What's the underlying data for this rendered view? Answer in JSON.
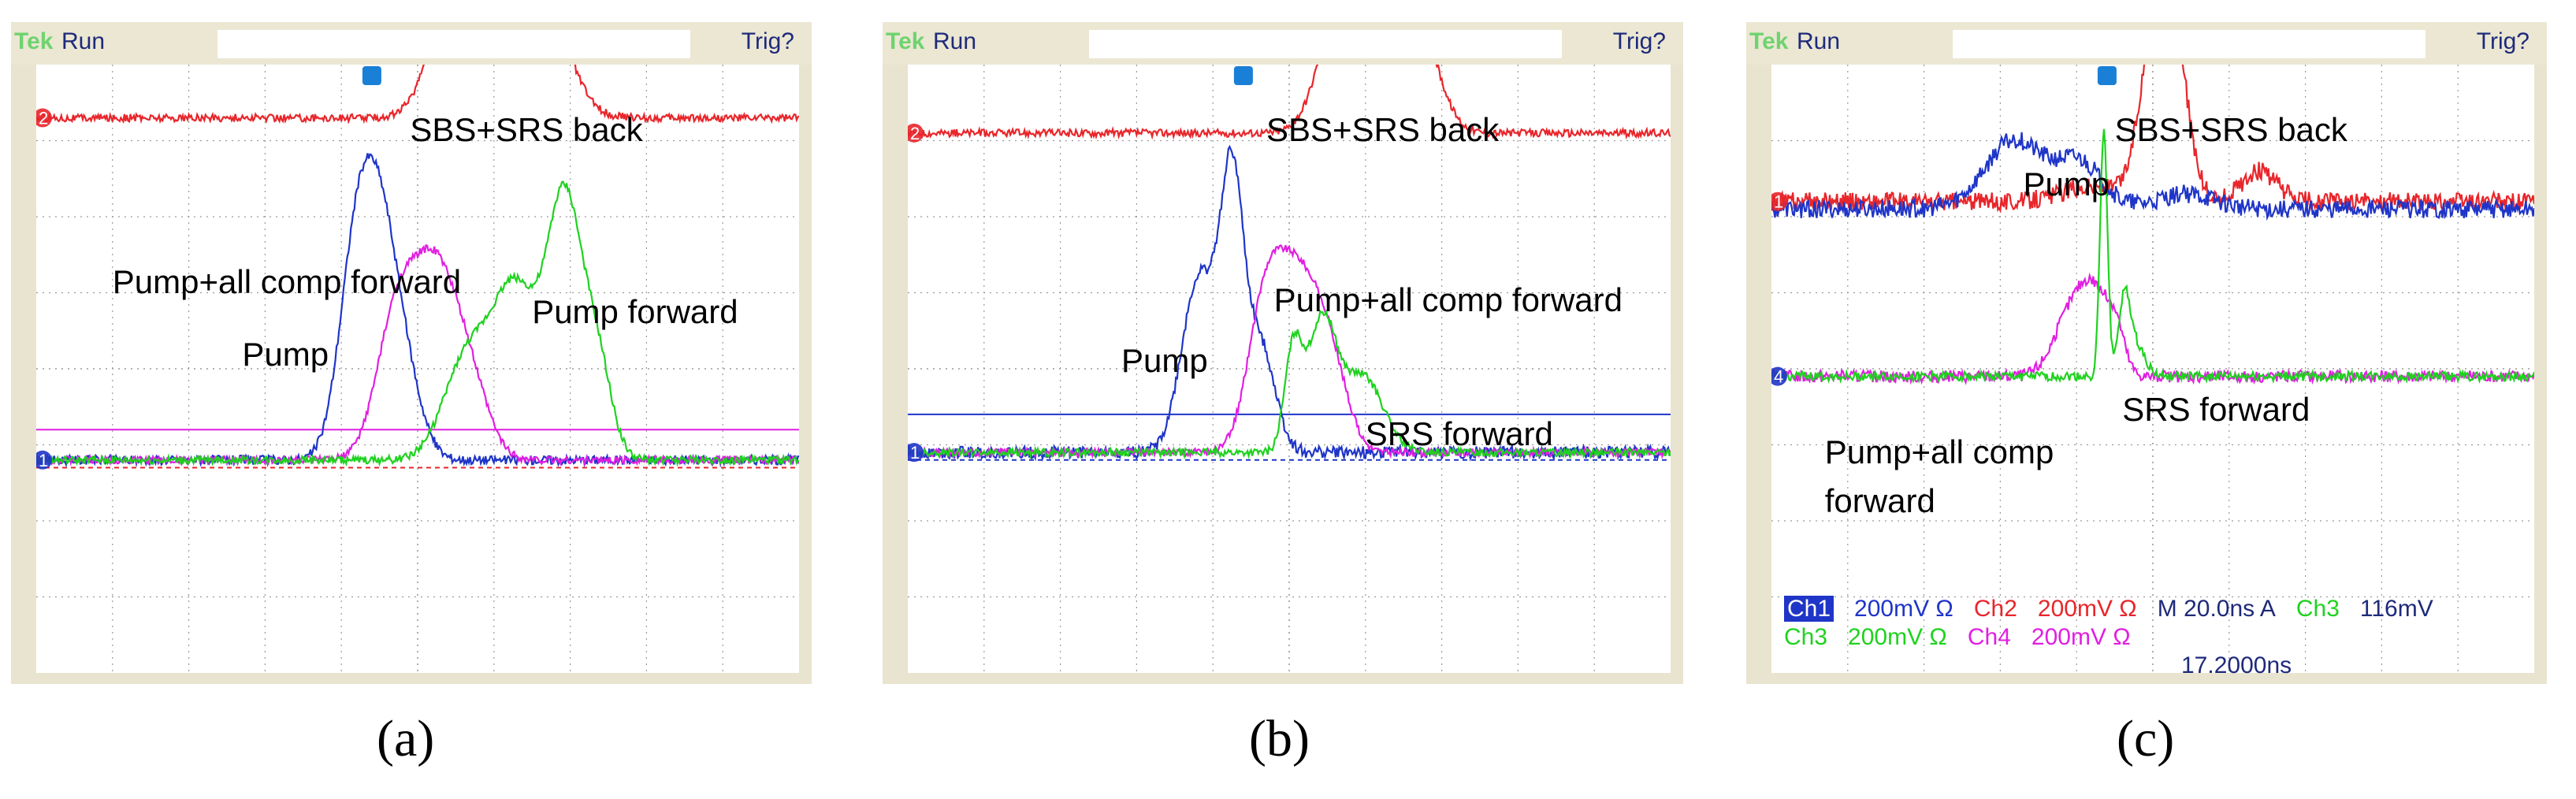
{
  "chart_data": [
    {
      "type": "line",
      "panel": "(a)",
      "caption": "(a)",
      "header": {
        "brand": "Tek",
        "mode": "Run",
        "trigger": "Trig?"
      },
      "x_unit": "ns",
      "x_range": [
        -93.3,
        93.3
      ],
      "y_divisions": 8,
      "x_divisions": 10,
      "series": [
        {
          "name": "Ch2 (red)",
          "color": "#e8262b",
          "baseline": 3.3,
          "noise": 0.05,
          "peaks": [
            {
              "t": 12,
              "h": 2.5,
              "w": 9
            },
            {
              "t": 20,
              "h": 2.4,
              "w": 10
            },
            {
              "t": 28,
              "h": 1.8,
              "w": 10
            }
          ]
        },
        {
          "name": "Ch1 (blue)",
          "color": "#1f35c8",
          "baseline": -1.2,
          "noise": 0.06,
          "peaks": [
            {
              "t": -15,
              "h": 2.6,
              "w": 6
            },
            {
              "t": -9,
              "h": 2.4,
              "w": 6
            },
            {
              "t": -3,
              "h": 0.9,
              "w": 6
            }
          ]
        },
        {
          "name": "Ch4 (magenta)",
          "color": "#e11fe1",
          "baseline": -1.2,
          "noise": 0.05,
          "peaks": [
            {
              "t": -5,
              "h": 1.9,
              "w": 7
            },
            {
              "t": 4,
              "h": 2.1,
              "w": 7
            },
            {
              "t": 12,
              "h": 1.1,
              "w": 7
            }
          ]
        },
        {
          "name": "Ch3 (green)",
          "color": "#1fd21f",
          "baseline": -1.2,
          "noise": 0.05,
          "peaks": [
            {
              "t": 12,
              "h": 1.3,
              "w": 8
            },
            {
              "t": 24,
              "h": 2.2,
              "w": 8
            },
            {
              "t": 36,
              "h": 3.3,
              "w": 6
            },
            {
              "t": 44,
              "h": 1.2,
              "w": 5
            }
          ]
        }
      ],
      "hlines": [
        {
          "color": "#e11fe1",
          "y": -0.8,
          "dash": false
        },
        {
          "color": "#e8262b",
          "y": -1.3,
          "dash": true
        }
      ],
      "annotations": [
        {
          "text": "SBS+SRS back",
          "ax": 0.49,
          "ay": 0.08
        },
        {
          "text": "Pump+all comp forward",
          "ax": 0.1,
          "ay": 0.33
        },
        {
          "text": "Pump forward",
          "ax": 0.65,
          "ay": 0.38
        },
        {
          "text": "Pump",
          "ax": 0.27,
          "ay": 0.45
        }
      ],
      "markers": [
        "2",
        "1"
      ],
      "channel_info": []
    },
    {
      "type": "line",
      "panel": "(b)",
      "caption": "(b)",
      "header": {
        "brand": "Tek",
        "mode": "Run",
        "trigger": "Trig?"
      },
      "x_unit": "ns",
      "x_range": [
        -93.3,
        93.3
      ],
      "y_divisions": 8,
      "x_divisions": 10,
      "series": [
        {
          "name": "Ch2 (red)",
          "color": "#e8262b",
          "baseline": 3.1,
          "noise": 0.05,
          "peaks": [
            {
              "t": 14,
              "h": 1.9,
              "w": 8
            },
            {
              "t": 24,
              "h": 1.7,
              "w": 9
            },
            {
              "t": 32,
              "h": 0.9,
              "w": 7
            }
          ]
        },
        {
          "name": "Ch1 (blue)",
          "color": "#1f35c8",
          "baseline": -1.1,
          "noise": 0.08,
          "peaks": [
            {
              "t": -22,
              "h": 2.3,
              "w": 6
            },
            {
              "t": -14,
              "h": 3.4,
              "w": 4
            },
            {
              "t": -7,
              "h": 1.4,
              "w": 5
            }
          ]
        },
        {
          "name": "Ch4 (magenta)",
          "color": "#e11fe1",
          "baseline": -1.1,
          "noise": 0.05,
          "peaks": [
            {
              "t": -6,
              "h": 1.8,
              "w": 6
            },
            {
              "t": 2,
              "h": 2.1,
              "w": 7
            },
            {
              "t": 10,
              "h": 1.1,
              "w": 6
            }
          ]
        },
        {
          "name": "Ch3 (green)",
          "color": "#1fd21f",
          "baseline": -1.1,
          "noise": 0.05,
          "peaks": [
            {
              "t": 1,
              "h": 1.3,
              "w": 3
            },
            {
              "t": 8,
              "h": 1.7,
              "w": 5
            },
            {
              "t": 18,
              "h": 1.0,
              "w": 7
            }
          ]
        }
      ],
      "hlines": [
        {
          "color": "#1f35c8",
          "y": -0.6,
          "dash": false
        },
        {
          "color": "#1f35c8",
          "y": -1.2,
          "dash": true
        }
      ],
      "annotations": [
        {
          "text": "SBS+SRS back",
          "ax": 0.47,
          "ay": 0.08
        },
        {
          "text": "Pump+all comp forward",
          "ax": 0.48,
          "ay": 0.36
        },
        {
          "text": "Pump",
          "ax": 0.28,
          "ay": 0.46
        },
        {
          "text": "SRS forward",
          "ax": 0.6,
          "ay": 0.58
        }
      ],
      "markers": [
        "2",
        "1"
      ],
      "channel_info": []
    },
    {
      "type": "line",
      "panel": "(c)",
      "caption": "(c)",
      "header": {
        "brand": "Tek",
        "mode": "Run",
        "trigger": "Trig?"
      },
      "x_unit": "ns",
      "x_range": [
        -93.3,
        93.3
      ],
      "y_divisions": 8,
      "x_divisions": 10,
      "series": [
        {
          "name": "Ch2 (red)",
          "color": "#e8262b",
          "baseline": 2.2,
          "noise": 0.12,
          "peaks": [
            {
              "t": -15,
              "h": 0.2,
              "w": 10
            },
            {
              "t": 0,
              "h": 1.8,
              "w": 5
            },
            {
              "t": 5,
              "h": 2.0,
              "w": 5
            },
            {
              "t": 26,
              "h": 0.4,
              "w": 6
            }
          ]
        },
        {
          "name": "Ch1 (blue)",
          "color": "#1f35c8",
          "baseline": 2.1,
          "noise": 0.12,
          "peaks": [
            {
              "t": -34,
              "h": 0.9,
              "w": 10
            },
            {
              "t": -18,
              "h": 0.6,
              "w": 8
            },
            {
              "t": 8,
              "h": 0.2,
              "w": 10
            }
          ]
        },
        {
          "name": "Ch4 (magenta)",
          "color": "#e11fe1",
          "baseline": -0.1,
          "noise": 0.08,
          "peaks": [
            {
              "t": -20,
              "h": 0.8,
              "w": 6
            },
            {
              "t": -14,
              "h": 0.9,
              "w": 5
            },
            {
              "t": -9,
              "h": 0.5,
              "w": 3
            }
          ]
        },
        {
          "name": "Ch3 (green)",
          "color": "#1fd21f",
          "baseline": -0.1,
          "noise": 0.06,
          "peaks": [
            {
              "t": -12,
              "h": 3.2,
              "w": 1.3
            },
            {
              "t": -7,
              "h": 1.0,
              "w": 2
            },
            {
              "t": -4,
              "h": 0.4,
              "w": 3
            }
          ]
        }
      ],
      "hlines": [],
      "annotations": [
        {
          "text": "SBS+SRS back",
          "ax": 0.45,
          "ay": 0.08
        },
        {
          "text": "Pump",
          "ax": 0.33,
          "ay": 0.17
        },
        {
          "text": "SRS forward",
          "ax": 0.46,
          "ay": 0.54
        },
        {
          "text": "Pump+all comp",
          "ax": 0.07,
          "ay": 0.61
        },
        {
          "text": "forward",
          "ax": 0.07,
          "ay": 0.69
        }
      ],
      "markers": [
        "1",
        "4"
      ],
      "channel_info": [
        {
          "text": "Ch1",
          "color": "#1f35c8"
        },
        {
          "text": "200mV Ω",
          "color": "#1f35c8"
        },
        {
          "text": "Ch2",
          "color": "#e8262b"
        },
        {
          "text": "200mV Ω",
          "color": "#e8262b"
        },
        {
          "text": "M 20.0ns  A",
          "color": "#1e2a7a"
        },
        {
          "text": "Ch3",
          "color": "#1fd21f"
        },
        {
          "text": "116mV",
          "color": "#1e2a7a"
        },
        {
          "text": "Ch3",
          "color": "#1fd21f"
        },
        {
          "text": "200mV Ω",
          "color": "#1fd21f"
        },
        {
          "text": "Ch4",
          "color": "#e11fe1"
        },
        {
          "text": "200mV Ω",
          "color": "#e11fe1"
        },
        {
          "text": "17.2000ns",
          "color": "#1e2a7a"
        }
      ]
    }
  ]
}
